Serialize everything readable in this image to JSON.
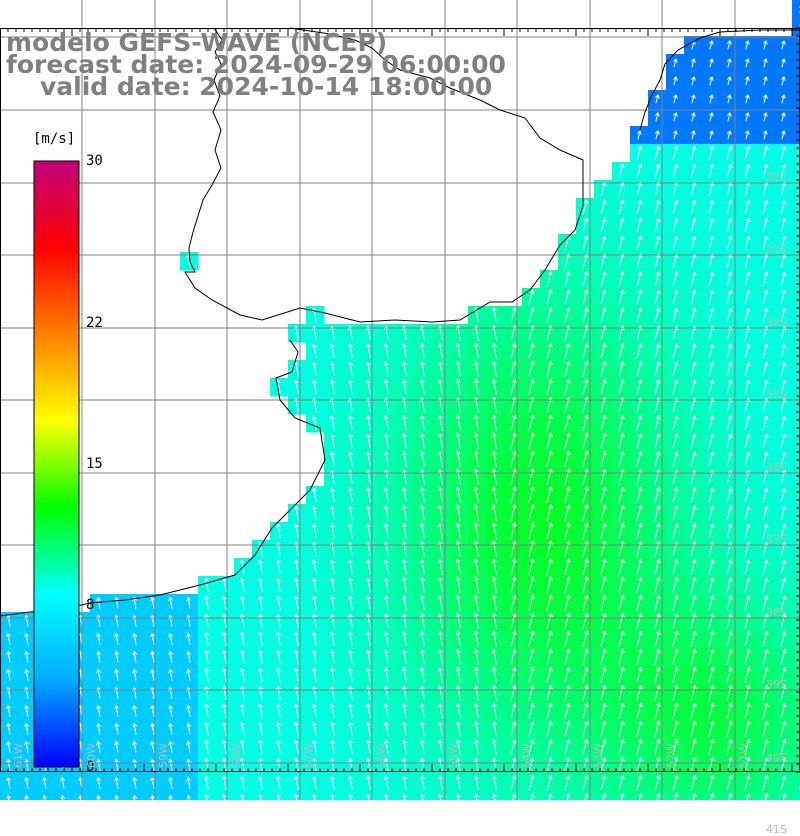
{
  "title": {
    "line1": "modelo GEFS-WAVE (NCEP)",
    "line2": "forecast date: 2024-09-29 06:00:00",
    "line3": "valid date: 2024-10-14 18:00:00"
  },
  "colorbar": {
    "unit": "[m/s]",
    "ticks": [
      {
        "label": "30",
        "value": 30
      },
      {
        "label": "22",
        "value": 22
      },
      {
        "label": "15",
        "value": 15
      },
      {
        "label": "8",
        "value": 8
      },
      {
        "label": "0",
        "value": 0
      }
    ],
    "stops": [
      "#0000ff",
      "#00aaff",
      "#00ffff",
      "#00ff00",
      "#ffff00",
      "#ff8000",
      "#ff0000",
      "#c0007a"
    ]
  },
  "grid": {
    "lat_labels": [
      "32S",
      "33S",
      "34S",
      "35S",
      "36S",
      "37S",
      "38S",
      "39S",
      "40S",
      "41S"
    ],
    "lon_labels": [
      "61W",
      "60W",
      "59W",
      "58W",
      "57W",
      "56W",
      "55W",
      "54W",
      "53W",
      "52W",
      "51W"
    ]
  },
  "colors": {
    "land": "#ffffff",
    "coast": "#000000",
    "grid": "#808080",
    "arrows": "#ffffff"
  }
}
